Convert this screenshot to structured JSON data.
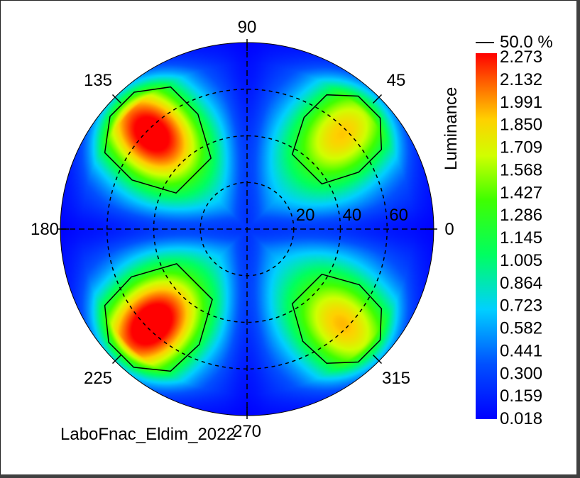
{
  "chart_data": {
    "type": "heatmap",
    "projection": "polar",
    "title": "",
    "caption": "LaboFnac_Eldim_2022",
    "colorbar": {
      "title": "Luminance",
      "contour_label": "50.0 %",
      "ticks": [
        "2.273",
        "2.132",
        "1.991",
        "1.850",
        "1.709",
        "1.568",
        "1.427",
        "1.286",
        "1.145",
        "1.005",
        "0.864",
        "0.723",
        "0.582",
        "0.441",
        "0.300",
        "0.159",
        "0.018"
      ],
      "min": 0.018,
      "max": 2.273,
      "colors": [
        "#0000ff",
        "#00a0ff",
        "#00ffff",
        "#00ff00",
        "#ffff00",
        "#ff0000"
      ]
    },
    "azimuth_labels": [
      "0",
      "45",
      "90",
      "135",
      "180",
      "225",
      "270",
      "315"
    ],
    "radial_labels": [
      "20",
      "40",
      "60"
    ],
    "radial_max": 80,
    "lobes": [
      {
        "azimuth": 135,
        "inclination": 58,
        "peak": 2.2
      },
      {
        "azimuth": 225,
        "inclination": 58,
        "peak": 2.27
      },
      {
        "azimuth": 45,
        "inclination": 58,
        "peak": 1.65
      },
      {
        "azimuth": 315,
        "inclination": 58,
        "peak": 1.68
      }
    ],
    "contour_level": 1.136
  }
}
